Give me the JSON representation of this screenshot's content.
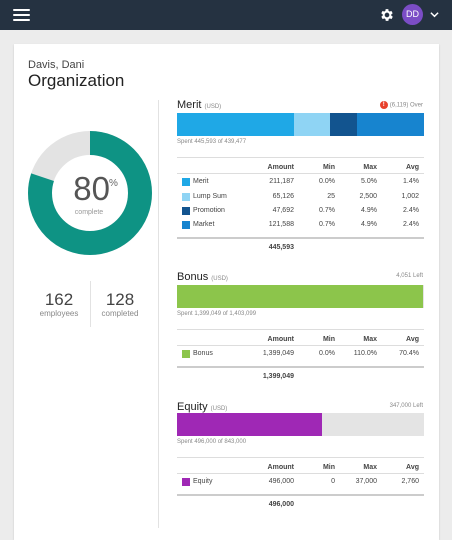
{
  "colors": {
    "topbar": "#253241",
    "teal": "#0e9384",
    "merit": "#1fa8e6",
    "lump_sum": "#8fd4f4",
    "promotion": "#12548f",
    "market": "#1784cf",
    "bonus": "#8cc54b",
    "equity": "#9f28b5",
    "track": "#e4e4e4",
    "avatar": "#7b4dc6",
    "alert": "#e8412c"
  },
  "icons": [
    "menu-icon",
    "gear-icon",
    "chevron-down-icon",
    "alert-icon"
  ],
  "header": {
    "avatar_initials": "DD"
  },
  "profile": {
    "name": "Davis, Dani",
    "title": "Organization"
  },
  "progress": {
    "percent": 80,
    "percent_text": "80",
    "sign": "%",
    "label": "complete",
    "fraction": 0.8
  },
  "stats": [
    {
      "value": "162",
      "label": "employees"
    },
    {
      "value": "128",
      "label": "completed"
    }
  ],
  "columns": {
    "amount": "Amount",
    "min": "Min",
    "max": "Max",
    "avg": "Avg"
  },
  "merit": {
    "title": "Merit",
    "currency": "(USD)",
    "status_icon": "!",
    "status": "(6,119) Over",
    "spent": "Spent 445,593 of 439,477",
    "rows": [
      {
        "label": "Merit",
        "amount": "211,187",
        "min": "0.0%",
        "max": "5.0%",
        "avg": "1.4%",
        "fraction": 0.474
      },
      {
        "label": "Lump Sum",
        "amount": "65,126",
        "min": "25",
        "max": "2,500",
        "avg": "1,002",
        "fraction": 0.146
      },
      {
        "label": "Promotion",
        "amount": "47,692",
        "min": "0.7%",
        "max": "4.9%",
        "avg": "2.4%",
        "fraction": 0.107
      },
      {
        "label": "Market",
        "amount": "121,588",
        "min": "0.7%",
        "max": "4.9%",
        "avg": "2.4%",
        "fraction": 0.273
      }
    ],
    "total": "445,593"
  },
  "bonus": {
    "title": "Bonus",
    "currency": "(USD)",
    "status": "4,051 Left",
    "spent": "Spent 1,399,049 of 1,403,099",
    "fraction": 0.997,
    "rows": [
      {
        "label": "Bonus",
        "amount": "1,399,049",
        "min": "0.0%",
        "max": "110.0%",
        "avg": "70.4%"
      }
    ],
    "total": "1,399,049"
  },
  "equity": {
    "title": "Equity",
    "currency": "(USD)",
    "status": "347,000 Left",
    "spent": "Spent 496,000 of 843,000",
    "fraction": 0.588,
    "rows": [
      {
        "label": "Equity",
        "amount": "496,000",
        "min": "0",
        "max": "37,000",
        "avg": "2,760"
      }
    ],
    "total": "496,000"
  }
}
